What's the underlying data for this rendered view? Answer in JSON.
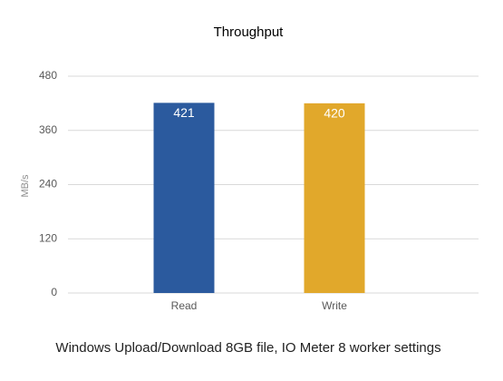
{
  "chart_data": {
    "type": "bar",
    "title": "Throughput",
    "y_label": "MB/s",
    "caption": "Windows Upload/Download 8GB file, IO Meter 8 worker settings",
    "categories": [
      "Read",
      "Write"
    ],
    "values": [
      421,
      420
    ],
    "colors": [
      "#2b5a9e",
      "#e1a82b"
    ],
    "ylim": [
      0,
      480
    ],
    "yticks": [
      0,
      120,
      240,
      360,
      480
    ],
    "grid": true,
    "data_labels": true
  }
}
